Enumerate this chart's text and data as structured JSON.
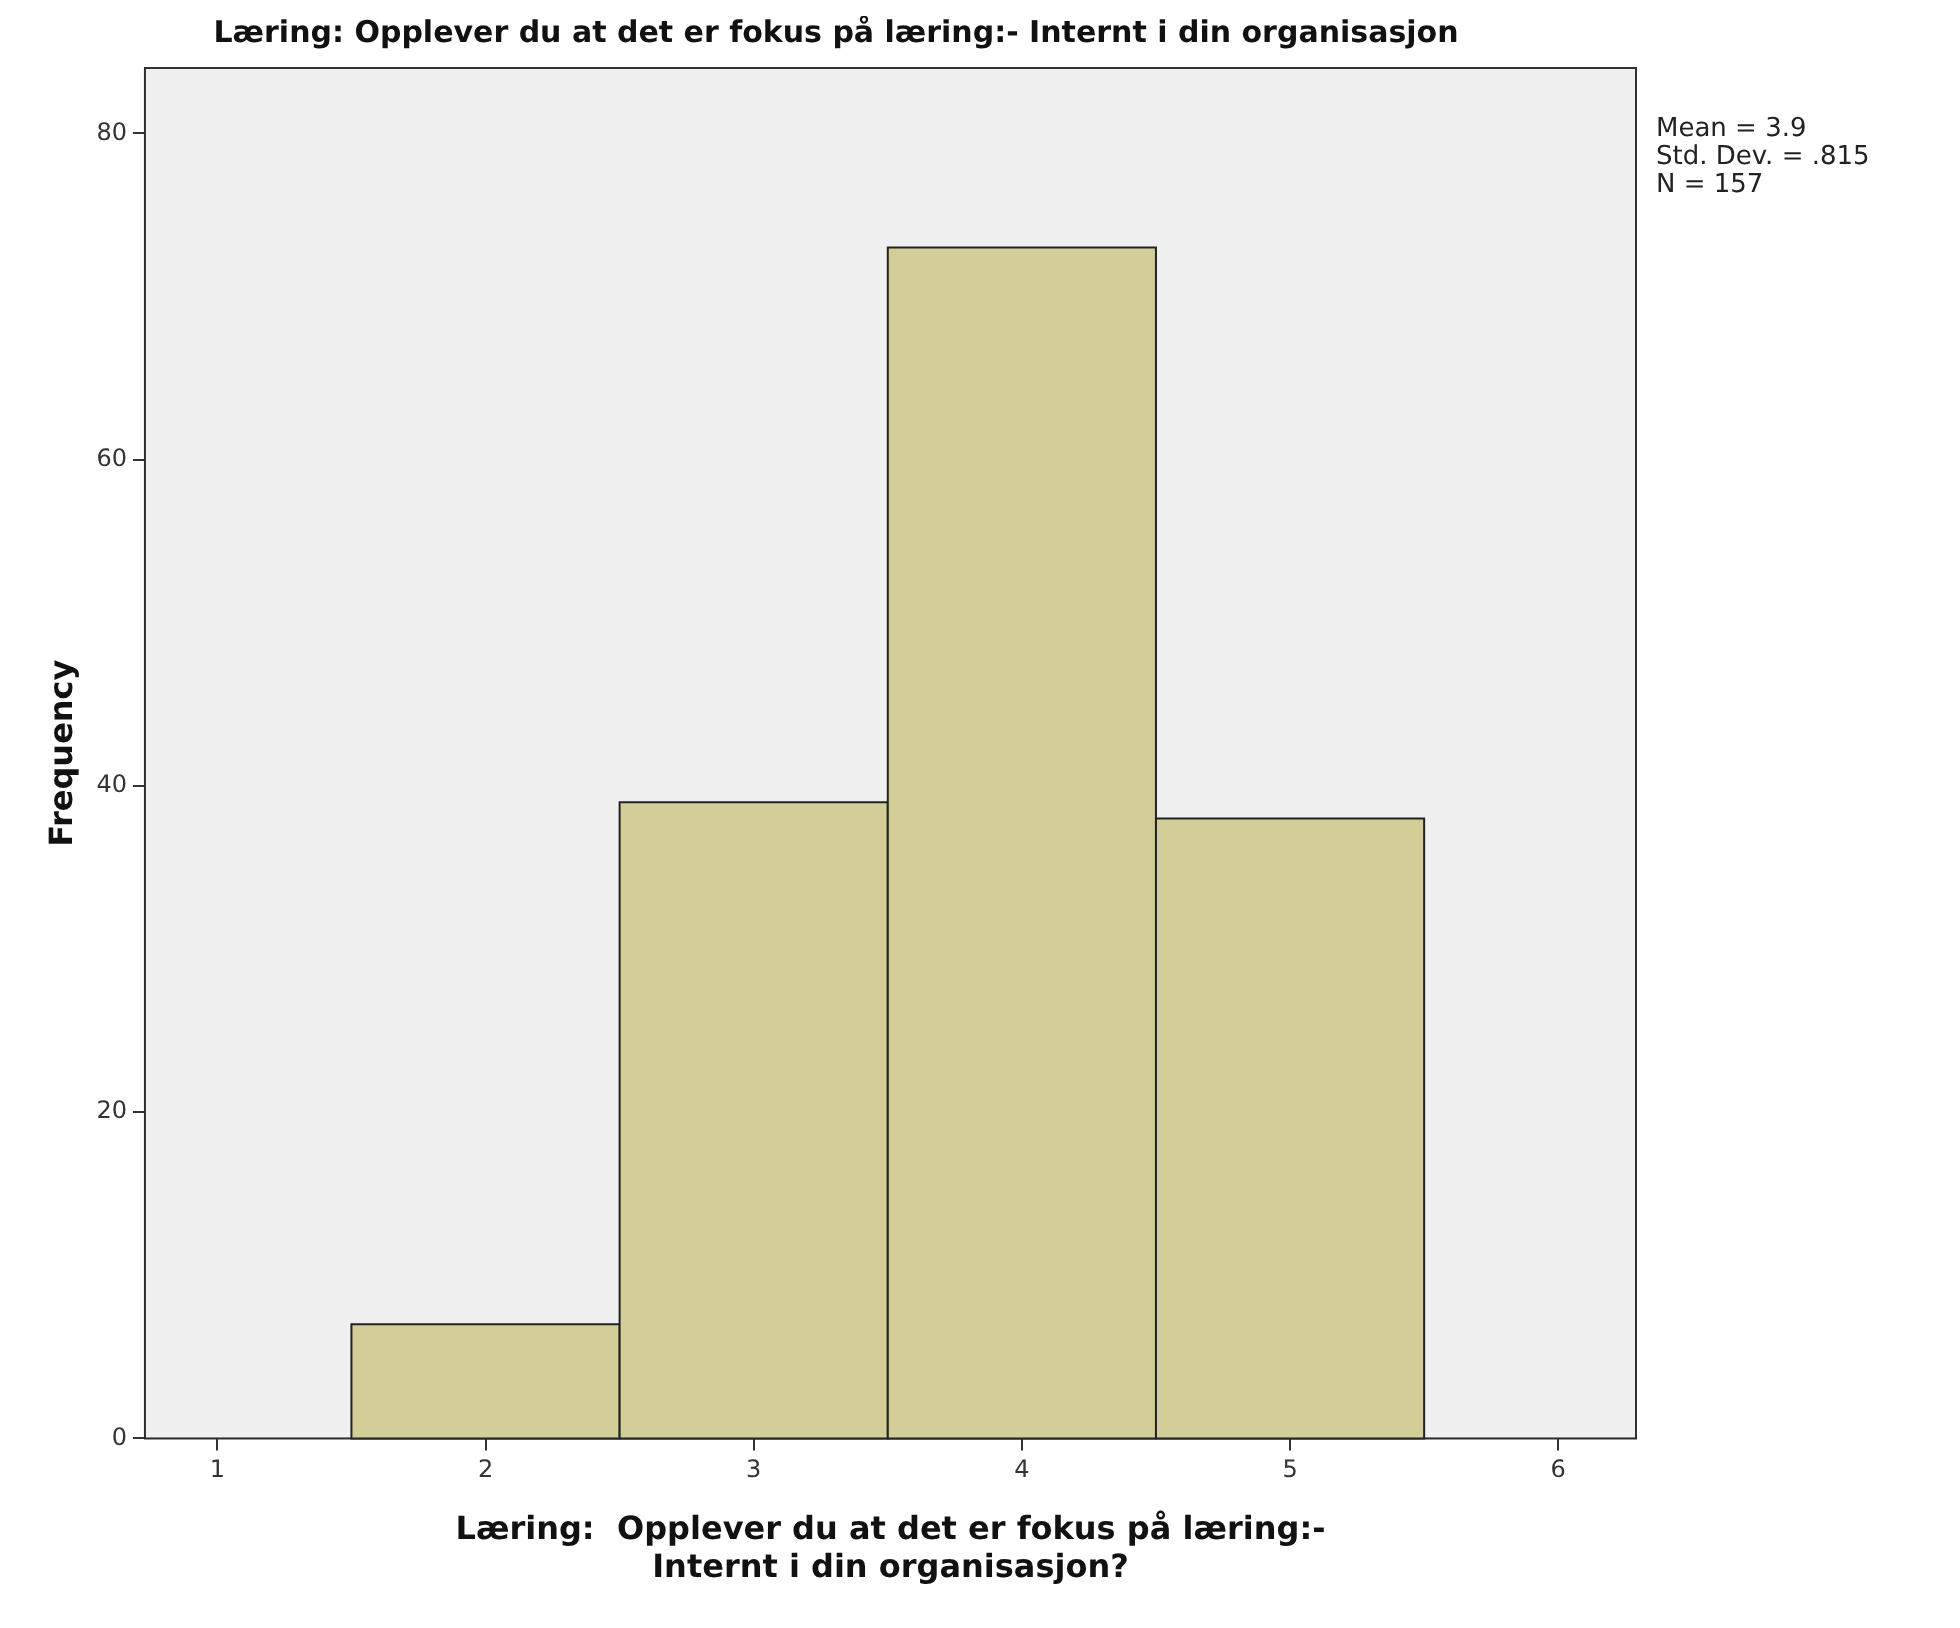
{
  "chart_data": {
    "type": "histogram",
    "title": "Læring: Opplever du at det er fokus på læring:- Internt i din organisasjon",
    "xlabel": "Læring:  Opplever du at det er fokus på læring:-\nInternt i din organisasjon?",
    "ylabel": "Frequency",
    "bins": [
      1.5,
      2.5,
      3.5,
      4.5,
      5.5
    ],
    "values": [
      7,
      39,
      73,
      38
    ],
    "color": "#d3ce97",
    "xlim": [
      0.73,
      6.29
    ],
    "xticks": [
      1,
      2,
      3,
      4,
      5,
      6
    ],
    "ylim": [
      0,
      84
    ],
    "yticks": [
      0,
      20,
      40,
      60,
      80
    ],
    "grid": false,
    "legend": false,
    "annotations": [
      "Mean = 3.9",
      "Std. Dev. = .815",
      "N = 157"
    ]
  }
}
